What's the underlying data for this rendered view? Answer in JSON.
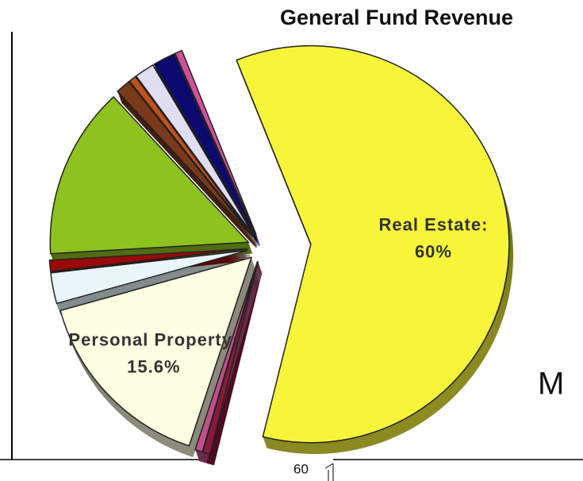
{
  "chart_data": {
    "type": "pie",
    "title": "General Fund Revenue",
    "categories": [
      "Real Estate:",
      null,
      null,
      "Personal Property:",
      null,
      null,
      null,
      null,
      null,
      null,
      null,
      null
    ],
    "values": [
      60,
      0.6,
      0.6,
      15.6,
      2.5,
      0.9,
      14,
      1.2,
      0.6,
      1.6,
      1.8,
      0.6
    ],
    "value_labels": [
      "60%",
      null,
      null,
      "15.6%",
      null,
      null,
      null,
      null,
      null,
      null,
      null,
      null
    ],
    "colors": [
      "#f7f53a",
      "#8b1a3a",
      "#c0508a",
      "#fffde2",
      "#e8f6fb",
      "#9b0a0a",
      "#8ec21f",
      "#7a3a1a",
      "#c0501a",
      "#e2def2",
      "#0a0a70",
      "#d050a0"
    ],
    "annotations": [
      "M",
      "60"
    ]
  }
}
